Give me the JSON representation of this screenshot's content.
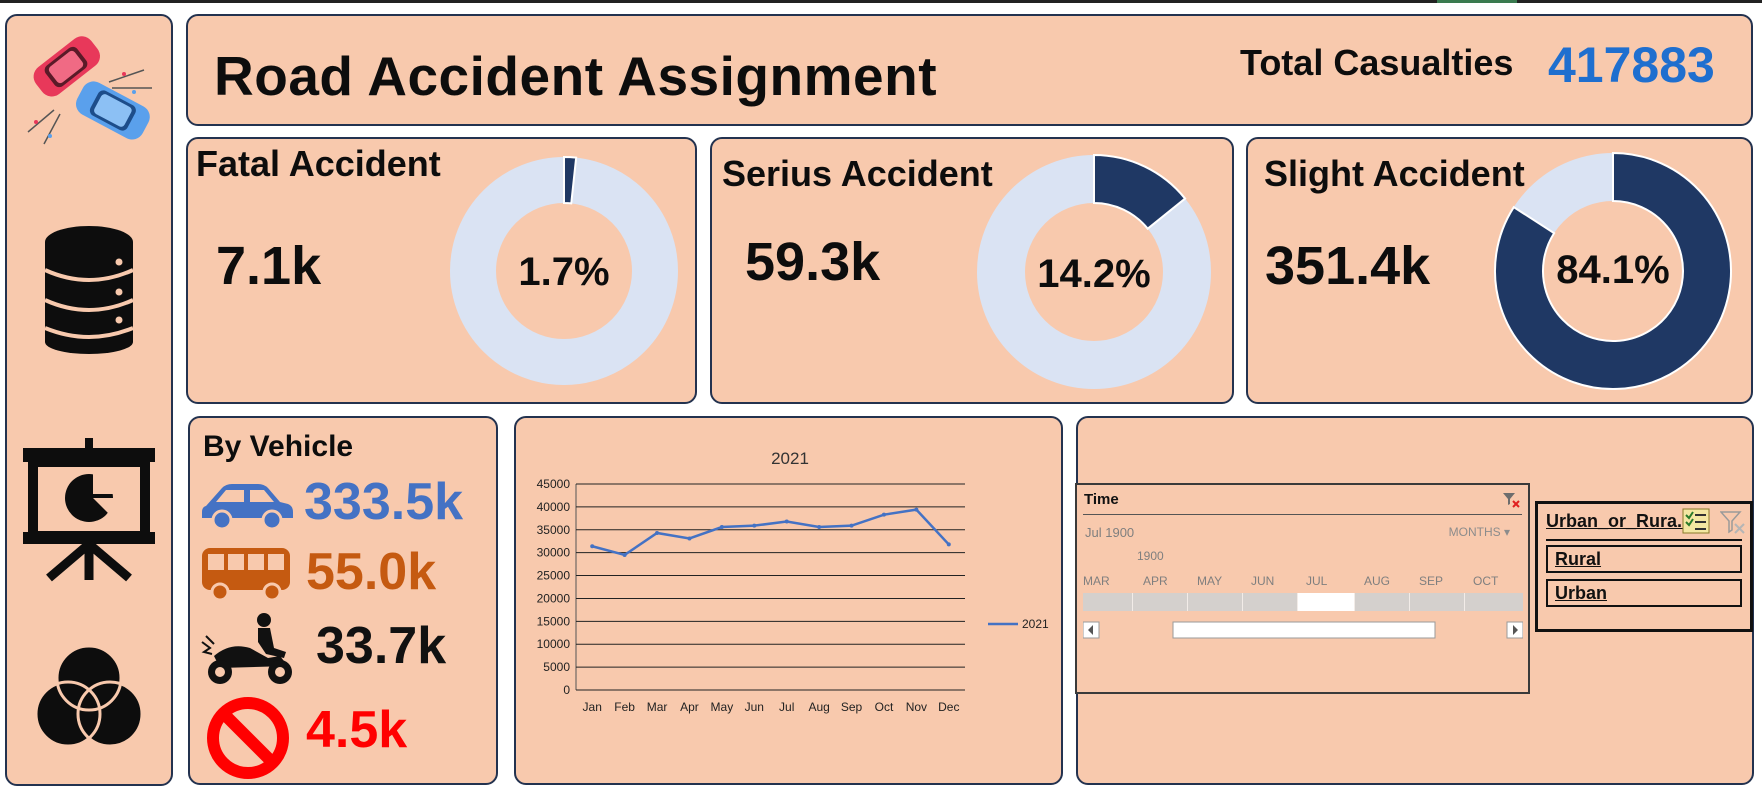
{
  "header": {
    "title": "Road Accident Assignment",
    "total_label": "Total Casualties",
    "total_value": "417883"
  },
  "kpis": [
    {
      "title": "Fatal Accident",
      "value": "7.1k",
      "percent_label": "1.7%",
      "percent": 1.7
    },
    {
      "title": "Serius Accident",
      "value": "59.3k",
      "percent_label": "14.2%",
      "percent": 14.2
    },
    {
      "title": "Slight Accident",
      "value": "351.4k",
      "percent_label": "84.1%",
      "percent": 84.1
    }
  ],
  "colors": {
    "panel_bg": "#f8c9ad",
    "border": "#23324f",
    "donut_fill": "#1f3864",
    "donut_track": "#dae3f3",
    "line": "#4472c4",
    "car": "#4472c4",
    "bus": "#c55a11",
    "bike": "#111111",
    "other": "#ff0000",
    "total": "#1f6fcf"
  },
  "sidebar": {
    "icons": [
      "car-crash-icon",
      "database-icon",
      "presentation-chart-icon",
      "venn-diagram-icon"
    ]
  },
  "vehicle": {
    "title": "By Vehicle",
    "items": [
      {
        "icon": "car-icon",
        "value": "333.5k"
      },
      {
        "icon": "bus-icon",
        "value": "55.0k"
      },
      {
        "icon": "motorbike-icon",
        "value": "33.7k"
      },
      {
        "icon": "no-entry-icon",
        "value": "4.5k"
      }
    ]
  },
  "chart_data": {
    "type": "line",
    "title": "2021",
    "categories": [
      "Jan",
      "Feb",
      "Mar",
      "Apr",
      "May",
      "Jun",
      "Jul",
      "Aug",
      "Sep",
      "Oct",
      "Nov",
      "Dec"
    ],
    "series": [
      {
        "name": "2021",
        "values": [
          31400,
          29500,
          34300,
          33100,
          35600,
          35900,
          36800,
          35600,
          35900,
          38300,
          39400,
          31800
        ]
      }
    ],
    "ylim": [
      0,
      45000
    ],
    "yticks": [
      0,
      5000,
      10000,
      15000,
      20000,
      25000,
      30000,
      35000,
      40000,
      45000
    ],
    "grid": true,
    "legend": "right"
  },
  "timeline": {
    "title": "Time",
    "period": "Jul 1900",
    "level": "MONTHS",
    "year": "1900",
    "months": [
      "MAR",
      "APR",
      "MAY",
      "JUN",
      "JUL",
      "AUG",
      "SEP",
      "OCT"
    ],
    "selected": "JUL"
  },
  "urban_slicer": {
    "title": "Urban_or_Rura...",
    "items": [
      "Rural",
      "Urban"
    ]
  }
}
